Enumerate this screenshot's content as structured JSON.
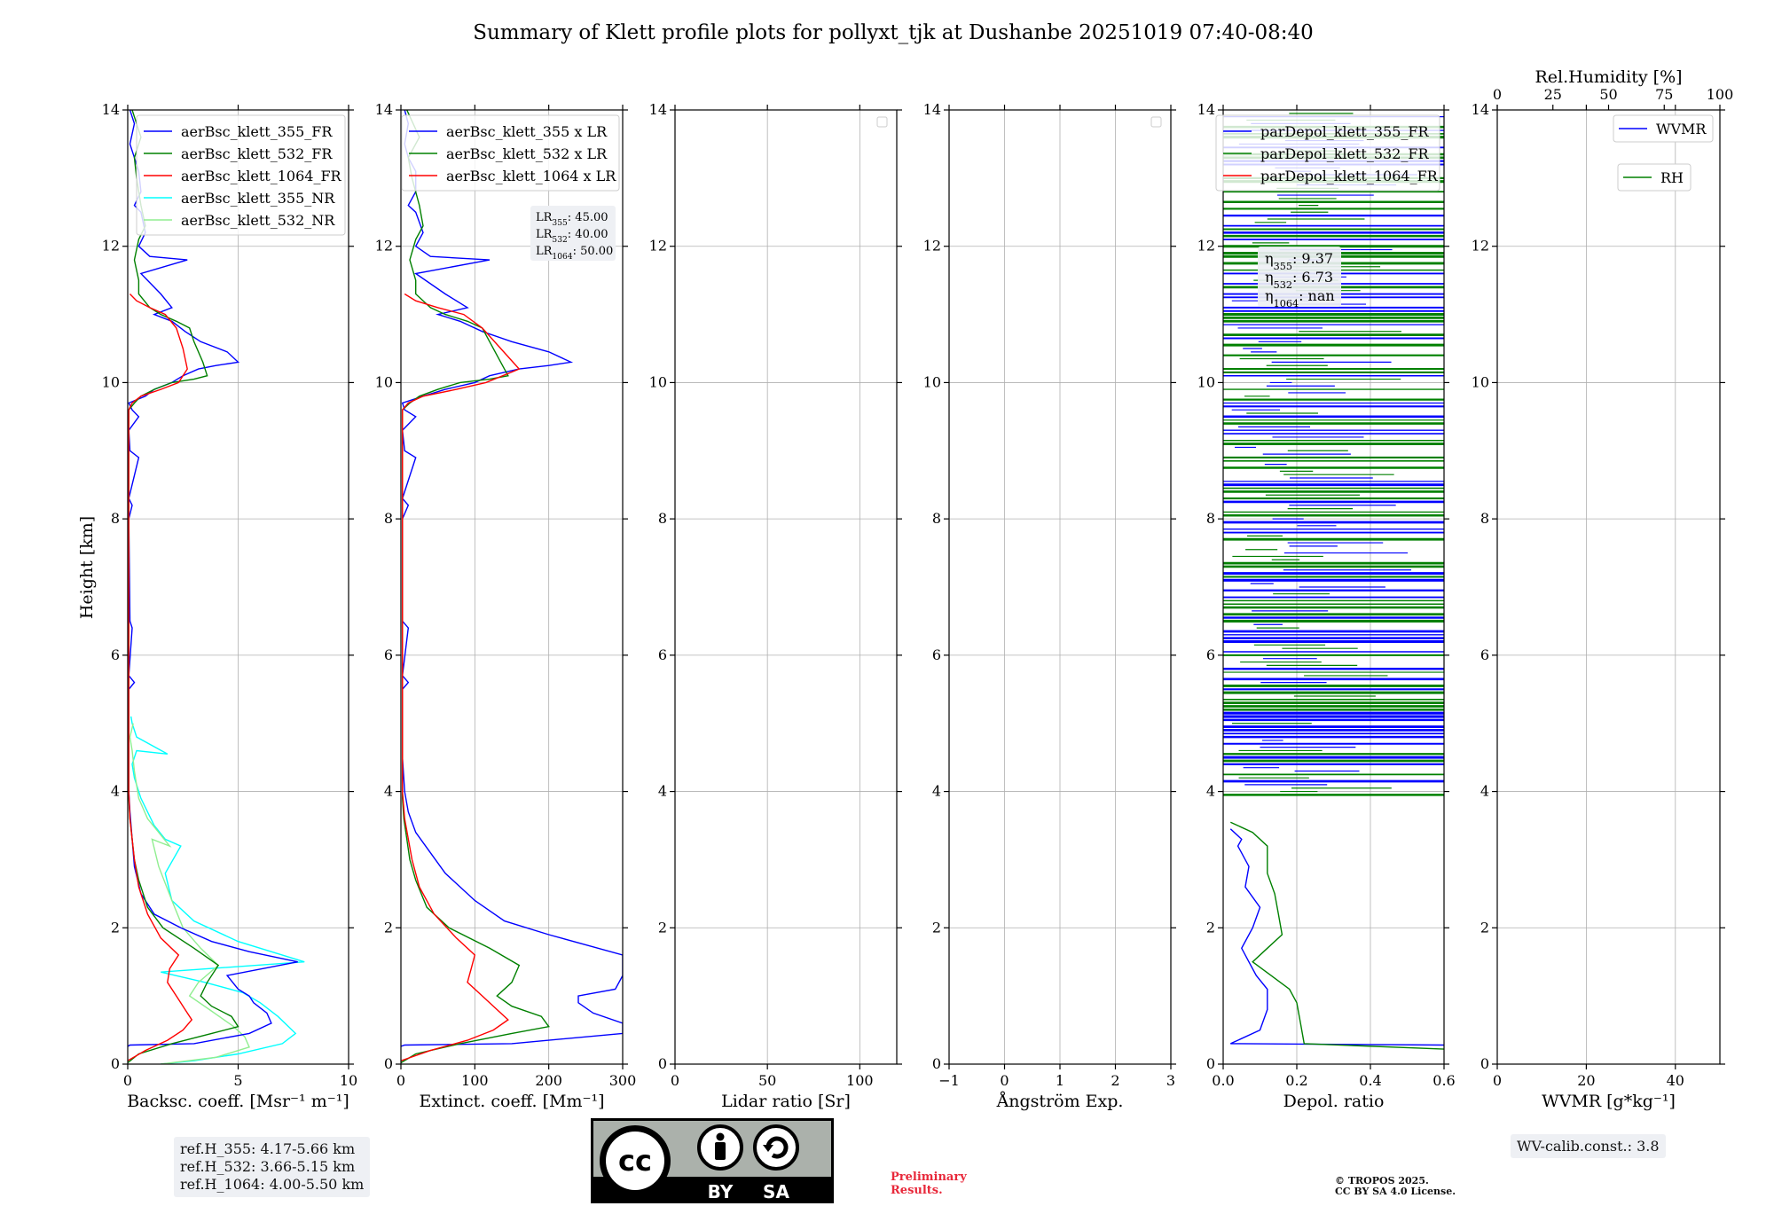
{
  "figure": {
    "title": "Summary of Klett profile plots for pollyxt_tjk at Dushanbe 20251019 07:40-08:40",
    "ylabel": "Height [km]"
  },
  "boxes": {
    "lr": [
      "LR",
      "355",
      ": 45.00",
      "LR",
      "532",
      ": 40.00",
      "LR",
      "1064",
      ": 50.00"
    ],
    "eta": [
      "η",
      "355",
      ": 9.37",
      "η",
      "532",
      ": 6.73",
      "η",
      "1064",
      ": nan"
    ],
    "ref": [
      "ref.H_355: 4.17-5.66 km",
      "ref.H_532: 3.66-5.15 km",
      "ref.H_1064: 4.00-5.50 km"
    ],
    "wv": "WV-calib.const.: 3.8"
  },
  "footer": {
    "cc_label": "cc",
    "by": "BY",
    "sa": "SA",
    "prelim_line1": "Preliminary",
    "prelim_line2": "Results.",
    "tropos_line1": "© TROPOS 2025.",
    "tropos_line2": "CC BY SA 4.0 License."
  },
  "colors": {
    "blue": "#0000ff",
    "green": "#008000",
    "red": "#ff0000",
    "cyan": "#00ffff",
    "lightgreen": "#90ee90"
  },
  "chart_data": [
    {
      "type": "line",
      "name": "backscatter",
      "xlabel": "Backsc. coeff. [Msr⁻¹ m⁻¹]",
      "ylabel": "Height [km]",
      "xlim": [
        0,
        10
      ],
      "ylim": [
        0,
        14
      ],
      "xticks": [
        0,
        5,
        10
      ],
      "yticks": [
        0,
        2,
        4,
        6,
        8,
        10,
        12,
        14
      ],
      "grid": true,
      "legend": {
        "position": "top-right",
        "entries": [
          {
            "label": "aerBsc_klett_355_FR",
            "color": "#0000ff"
          },
          {
            "label": "aerBsc_klett_532_FR",
            "color": "#008000"
          },
          {
            "label": "aerBsc_klett_1064_FR",
            "color": "#ff0000"
          },
          {
            "label": "aerBsc_klett_355_NR",
            "color": "#00ffff"
          },
          {
            "label": "aerBsc_klett_532_NR",
            "color": "#90ee90"
          }
        ]
      },
      "series": [
        {
          "name": "aerBsc_klett_355_NR",
          "color": "#00ffff",
          "x": [
            1.5,
            3,
            5,
            7,
            7.6,
            6.8,
            6,
            5.2,
            3.5,
            1.5,
            8,
            5,
            3,
            2,
            1.7,
            2.4,
            1.7,
            1.2,
            0.6,
            0.3,
            0.2,
            0.4,
            1.8,
            0.4,
            0.2,
            0.15
          ],
          "y": [
            0,
            0.05,
            0.15,
            0.3,
            0.45,
            0.7,
            0.9,
            1.05,
            1.2,
            1.35,
            1.5,
            1.8,
            2.1,
            2.4,
            2.8,
            3.2,
            3.3,
            3.5,
            3.9,
            4.2,
            4.4,
            4.6,
            4.55,
            4.8,
            5.0,
            5.1
          ]
        },
        {
          "name": "aerBsc_klett_532_NR",
          "color": "#90ee90",
          "x": [
            1.5,
            4,
            5.5,
            5.3,
            4.8,
            3.7,
            2.8,
            3.2,
            4.1,
            3.3,
            2.5,
            2.0,
            1.4,
            1.1,
            1.9,
            0.9,
            0.5,
            0.3,
            0.2,
            0.1,
            0.25
          ],
          "y": [
            0,
            0.1,
            0.25,
            0.4,
            0.55,
            0.8,
            1.0,
            1.2,
            1.45,
            1.7,
            2.0,
            2.4,
            2.9,
            3.3,
            3.2,
            3.6,
            3.9,
            4.3,
            4.6,
            4.8,
            5.0
          ]
        },
        {
          "name": "aerBsc_klett_355_FR",
          "color": "#0000ff",
          "x": [
            0,
            0.1,
            3.0,
            5.5,
            6.5,
            6.3,
            5.7,
            5.5,
            5.0,
            4.5,
            7.7,
            5.5,
            3.8,
            2.4,
            1.2,
            0.6,
            0.3,
            0.2,
            0.1,
            0.05,
            0.05,
            0.3,
            0.05,
            0.2,
            0.1,
            0.05,
            0.2,
            0.05,
            0.5,
            0.1,
            0.05,
            0.5,
            0.2,
            0.05,
            0.8,
            1.2,
            2.0,
            2.5,
            3.2,
            4.0,
            5.0,
            4.5,
            3.3,
            2.6,
            2.0,
            1.2,
            2.0,
            1.5,
            0.6,
            2.7,
            1.0,
            0.5,
            0.8,
            0.6,
            0.3,
            0.6,
            0.5,
            0.3,
            0.1,
            0.3,
            0.1
          ],
          "y": [
            0.26,
            0.28,
            0.3,
            0.45,
            0.6,
            0.75,
            0.9,
            1.0,
            1.1,
            1.3,
            1.5,
            1.65,
            1.8,
            2.0,
            2.2,
            2.5,
            2.9,
            3.3,
            3.7,
            4.0,
            5.5,
            5.6,
            5.7,
            6.4,
            6.5,
            8.0,
            8.2,
            8.3,
            8.9,
            9.0,
            9.3,
            9.5,
            9.6,
            9.7,
            9.8,
            9.9,
            10.0,
            10.1,
            10.2,
            10.25,
            10.3,
            10.45,
            10.6,
            10.75,
            10.9,
            11.0,
            11.1,
            11.3,
            11.6,
            11.8,
            11.85,
            12.0,
            12.2,
            12.5,
            12.6,
            12.8,
            13.1,
            13.3,
            13.5,
            13.8,
            14.0
          ]
        },
        {
          "name": "aerBsc_klett_532_FR",
          "color": "#008000",
          "x": [
            0,
            0.5,
            2.0,
            3.8,
            5.0,
            4.7,
            3.8,
            3.3,
            3.6,
            4.1,
            3.0,
            1.6,
            0.9,
            0.5,
            0.3,
            0.2,
            0.1,
            0.05,
            0.05,
            0.3,
            0.6,
            1.2,
            2.0,
            3.0,
            3.6,
            3.4,
            3.0,
            2.8,
            2.2,
            1.5,
            1.0,
            0.5,
            0.5,
            0.3,
            0.5,
            0.8,
            0.6,
            0.4,
            0.3,
            0.6,
            0.2
          ],
          "y": [
            0.02,
            0.15,
            0.3,
            0.45,
            0.55,
            0.7,
            0.85,
            1.0,
            1.2,
            1.45,
            1.7,
            2.0,
            2.3,
            2.7,
            3.0,
            3.3,
            3.6,
            3.9,
            9.6,
            9.7,
            9.8,
            9.9,
            10.0,
            10.05,
            10.1,
            10.3,
            10.6,
            10.8,
            10.9,
            11.0,
            11.1,
            11.3,
            11.5,
            11.8,
            12.1,
            12.3,
            12.6,
            13.0,
            13.3,
            13.6,
            14.0
          ]
        },
        {
          "name": "aerBsc_klett_1064_FR",
          "color": "#ff0000",
          "x": [
            0,
            0.8,
            1.8,
            2.5,
            2.9,
            2.6,
            2.2,
            1.8,
            1.9,
            2.3,
            1.5,
            0.9,
            0.5,
            0.3,
            0.1,
            0.05,
            0.05,
            0.2,
            0.6,
            1.5,
            2.3,
            2.7,
            2.5,
            2.2,
            1.7,
            1.0,
            0.4,
            0.1
          ],
          "y": [
            0.05,
            0.2,
            0.35,
            0.5,
            0.65,
            0.8,
            1.0,
            1.2,
            1.4,
            1.6,
            1.85,
            2.2,
            2.6,
            3.0,
            3.6,
            4.0,
            9.6,
            9.7,
            9.8,
            9.9,
            10.0,
            10.2,
            10.5,
            10.8,
            11.0,
            11.1,
            11.2,
            11.3
          ]
        }
      ]
    },
    {
      "type": "line",
      "name": "extinction",
      "xlabel": "Extinct. coeff. [Mm⁻¹]",
      "ylabel": "Height [km]",
      "xlim": [
        0,
        300
      ],
      "ylim": [
        0,
        14
      ],
      "xticks": [
        0,
        100,
        200,
        300
      ],
      "yticks": [
        0,
        2,
        4,
        6,
        8,
        10,
        12,
        14
      ],
      "grid": true,
      "legend": {
        "position": "top-right",
        "entries": [
          {
            "label": "aerBsc_klett_355 x LR",
            "color": "#0000ff"
          },
          {
            "label": "aerBsc_klett_532 x LR",
            "color": "#008000"
          },
          {
            "label": "aerBsc_klett_1064 x LR",
            "color": "#ff0000"
          }
        ]
      },
      "series": [
        {
          "name": "aerBsc_klett_355 x LR",
          "color": "#0000ff",
          "x": [
            0,
            5,
            150,
            300,
            300,
            260,
            240,
            240,
            290,
            300,
            300,
            200,
            140,
            100,
            60,
            40,
            20,
            10,
            5,
            2,
            2,
            10,
            2,
            10,
            2,
            2,
            10,
            2,
            20,
            5,
            2,
            20,
            5,
            2,
            30,
            60,
            100,
            120,
            160,
            200,
            230,
            200,
            150,
            110,
            80,
            50,
            90,
            60,
            20,
            120,
            40,
            20,
            30,
            20,
            10,
            20,
            20,
            10,
            5,
            10,
            5
          ],
          "y": [
            0.26,
            0.28,
            0.3,
            0.45,
            0.6,
            0.75,
            0.9,
            1.0,
            1.1,
            1.3,
            1.6,
            1.9,
            2.1,
            2.4,
            2.8,
            3.1,
            3.4,
            3.7,
            4.0,
            4.5,
            5.5,
            5.6,
            5.7,
            6.4,
            6.5,
            8.0,
            8.2,
            8.3,
            8.9,
            9.0,
            9.3,
            9.5,
            9.6,
            9.7,
            9.8,
            9.9,
            10.0,
            10.1,
            10.2,
            10.25,
            10.3,
            10.45,
            10.6,
            10.75,
            10.9,
            11.0,
            11.1,
            11.3,
            11.6,
            11.8,
            11.85,
            12.0,
            12.2,
            12.5,
            12.6,
            12.8,
            13.1,
            13.3,
            13.5,
            13.8,
            14.0
          ]
        },
        {
          "name": "aerBsc_klett_532 x LR",
          "color": "#008000",
          "x": [
            0,
            20,
            80,
            150,
            200,
            190,
            150,
            130,
            150,
            160,
            120,
            65,
            35,
            20,
            12,
            8,
            4,
            2,
            2,
            12,
            25,
            50,
            80,
            120,
            145,
            135,
            120,
            110,
            90,
            60,
            40,
            20,
            20,
            12,
            20,
            30,
            25,
            15,
            10,
            25,
            8
          ],
          "y": [
            0.02,
            0.15,
            0.3,
            0.45,
            0.55,
            0.7,
            0.85,
            1.0,
            1.2,
            1.45,
            1.7,
            2.0,
            2.3,
            2.7,
            3.0,
            3.3,
            3.6,
            3.9,
            9.6,
            9.7,
            9.8,
            9.9,
            10.0,
            10.05,
            10.1,
            10.3,
            10.6,
            10.8,
            10.9,
            11.0,
            11.1,
            11.3,
            11.5,
            11.8,
            12.1,
            12.3,
            12.6,
            13.0,
            13.3,
            13.6,
            14.0
          ]
        },
        {
          "name": "aerBsc_klett_1064 x LR",
          "color": "#ff0000",
          "x": [
            0,
            40,
            90,
            125,
            145,
            130,
            110,
            90,
            95,
            100,
            75,
            45,
            25,
            15,
            5,
            2,
            2,
            10,
            30,
            75,
            115,
            160,
            135,
            110,
            85,
            50,
            20,
            5
          ],
          "y": [
            0.05,
            0.2,
            0.35,
            0.5,
            0.65,
            0.8,
            1.0,
            1.2,
            1.4,
            1.6,
            1.85,
            2.2,
            2.6,
            3.0,
            3.6,
            4.0,
            9.6,
            9.7,
            9.8,
            9.9,
            10.0,
            10.2,
            10.5,
            10.8,
            11.0,
            11.1,
            11.2,
            11.3
          ]
        }
      ]
    },
    {
      "type": "line",
      "name": "lidar_ratio",
      "xlabel": "Lidar ratio [Sr]",
      "xlim": [
        0,
        120
      ],
      "ylim": [
        0,
        14
      ],
      "xticks": [
        0,
        50,
        100
      ],
      "yticks": [
        0,
        2,
        4,
        6,
        8,
        10,
        12,
        14
      ],
      "grid": true,
      "legend": {
        "position": "top-right",
        "entries": []
      },
      "series": []
    },
    {
      "type": "line",
      "name": "angstrom",
      "xlabel": "Ångström Exp.",
      "xlim": [
        -1,
        3
      ],
      "ylim": [
        0,
        14
      ],
      "xticks": [
        -1,
        0,
        1,
        2,
        3
      ],
      "xtick_labels": [
        "−1",
        "0",
        "1",
        "2",
        "3"
      ],
      "yticks": [
        0,
        2,
        4,
        6,
        8,
        10,
        12,
        14
      ],
      "grid": true,
      "legend": {
        "position": "top-right",
        "entries": []
      },
      "series": []
    },
    {
      "type": "line",
      "name": "depol",
      "xlabel": "Depol. ratio",
      "xlim": [
        0,
        0.6
      ],
      "ylim": [
        0,
        14
      ],
      "xticks": [
        0,
        0.2,
        0.4,
        0.6
      ],
      "xtick_labels": [
        "0.0",
        "0.2",
        "0.4",
        "0.6"
      ],
      "yticks": [
        0,
        2,
        4,
        6,
        8,
        10,
        12,
        14
      ],
      "grid": true,
      "legend": {
        "position": "top-left",
        "entries": [
          {
            "label": "parDepol_klett_355_FR",
            "color": "#0000ff"
          },
          {
            "label": "parDepol_klett_532_FR",
            "color": "#008000"
          },
          {
            "label": "parDepol_klett_1064_FR",
            "color": "#ff0000"
          }
        ]
      },
      "series": [
        {
          "name": "parDepol_klett_355_FR",
          "color": "#0000ff",
          "x": [
            0.6,
            0.02,
            0.1,
            0.12,
            0.12,
            0.09,
            0.07,
            0.05,
            0.08,
            0.1,
            0.06,
            0.07,
            0.04,
            0.05,
            0.02
          ],
          "y": [
            0.28,
            0.3,
            0.5,
            0.8,
            1.1,
            1.3,
            1.5,
            1.7,
            2.0,
            2.3,
            2.6,
            2.9,
            3.2,
            3.3,
            3.45
          ]
        },
        {
          "name": "parDepol_klett_532_FR",
          "color": "#008000",
          "x": [
            0.6,
            0.22,
            0.21,
            0.2,
            0.18,
            0.13,
            0.08,
            0.12,
            0.16,
            0.15,
            0.14,
            0.12,
            0.12,
            0.08,
            0.02
          ],
          "y": [
            0.22,
            0.3,
            0.6,
            0.9,
            1.1,
            1.3,
            1.5,
            1.7,
            1.9,
            2.2,
            2.5,
            2.8,
            3.2,
            3.4,
            3.55
          ]
        }
      ],
      "noise_band": {
        "y_range": [
          3.95,
          14.0
        ],
        "note": "dense noisy horizontal streaks of 355 and 532 depol values"
      }
    },
    {
      "type": "line",
      "name": "wvmr",
      "xlabel": "WVMR [g*kg⁻¹]",
      "xlim": [
        0,
        50
      ],
      "ylim": [
        0,
        14
      ],
      "xticks": [
        0,
        20,
        40
      ],
      "yticks": [
        0,
        2,
        4,
        6,
        8,
        10,
        12,
        14
      ],
      "grid": true,
      "top_axis": {
        "label": "Rel.Humidity [%]",
        "lim": [
          0,
          100
        ],
        "ticks": [
          0,
          25,
          50,
          75,
          100
        ]
      },
      "legend": {
        "position": "top-right",
        "entries": [
          {
            "label": "WVMR",
            "color": "#0000ff"
          },
          {
            "label": "RH",
            "color": "#008000"
          }
        ]
      },
      "series": []
    }
  ]
}
